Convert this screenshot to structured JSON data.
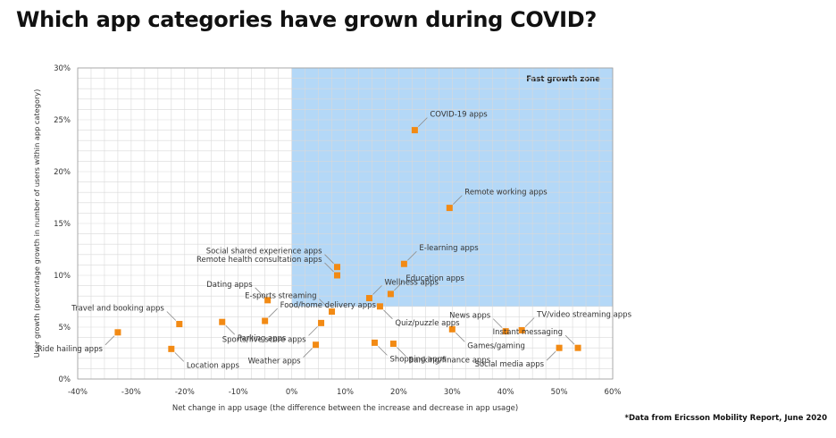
{
  "title": "Which app categories have grown during COVID?",
  "source_note": "*Data from Ericsson Mobility Report, June 2020",
  "colors": {
    "zone": "#b4d8f7",
    "marker": "#f28a14",
    "grid": "#d9d9d9",
    "text": "#333333"
  },
  "chart_data": {
    "type": "scatter",
    "xlabel": "Net change in app usage (the difference between the increase and decrease in app usage)",
    "ylabel": "User growth (percentage growth in number of users within app category)",
    "xlim": [
      -40,
      60
    ],
    "ylim": [
      0,
      30
    ],
    "x_ticks": [
      "-40%",
      "-30%",
      "-20%",
      "-10%",
      "0%",
      "10%",
      "20%",
      "30%",
      "40%",
      "50%",
      "60%"
    ],
    "y_ticks": [
      "0%",
      "5%",
      "10%",
      "15%",
      "20%",
      "25%",
      "30%"
    ],
    "grid": true,
    "zone": {
      "label": "Fast growth zone",
      "x_from": 0,
      "x_to": 60,
      "y_from": 7,
      "y_to": 30
    },
    "points": [
      {
        "label": "COVID-19 apps",
        "x": 23,
        "y": 24,
        "pos": "ne"
      },
      {
        "label": "Remote working apps",
        "x": 29.5,
        "y": 16.5,
        "pos": "ne"
      },
      {
        "label": "E-learning apps",
        "x": 21,
        "y": 11.1,
        "pos": "ne"
      },
      {
        "label": "Social shared experience apps",
        "x": 8.5,
        "y": 10.8,
        "pos": "nw"
      },
      {
        "label": "Remote health consultation apps",
        "x": 8.5,
        "y": 10,
        "pos": "nw"
      },
      {
        "label": "Wellness apps",
        "x": 14.5,
        "y": 7.8,
        "pos": "ne"
      },
      {
        "label": "Education apps",
        "x": 18.5,
        "y": 8.2,
        "pos": "ne"
      },
      {
        "label": "Dating apps",
        "x": -4.5,
        "y": 7.6,
        "pos": "nw"
      },
      {
        "label": "E-sports streaming",
        "x": 7.5,
        "y": 6.5,
        "pos": "nw"
      },
      {
        "label": "Quiz/puzzle apps",
        "x": 16.5,
        "y": 7,
        "pos": "se"
      },
      {
        "label": "Food/home delivery apps",
        "x": -5,
        "y": 5.6,
        "pos": "ne"
      },
      {
        "label": "Sports/live score apps",
        "x": 5.5,
        "y": 5.4,
        "pos": "sw"
      },
      {
        "label": "Travel and booking apps",
        "x": -21,
        "y": 5.3,
        "pos": "nw"
      },
      {
        "label": "Ride hailing apps",
        "x": -32.5,
        "y": 4.5,
        "pos": "sw"
      },
      {
        "label": "Parking apps",
        "x": -13,
        "y": 5.5,
        "pos": "se"
      },
      {
        "label": "Location apps",
        "x": -22.5,
        "y": 2.9,
        "pos": "se"
      },
      {
        "label": "Weather apps",
        "x": 4.5,
        "y": 3.3,
        "pos": "sw"
      },
      {
        "label": "Shopping apps",
        "x": 15.5,
        "y": 3.5,
        "pos": "se"
      },
      {
        "label": "Banking/finance apps",
        "x": 19,
        "y": 3.4,
        "pos": "se"
      },
      {
        "label": "News apps",
        "x": 40,
        "y": 4.6,
        "pos": "nw"
      },
      {
        "label": "Games/gaming",
        "x": 30,
        "y": 4.8,
        "pos": "se"
      },
      {
        "label": "TV/video streaming apps",
        "x": 43,
        "y": 4.7,
        "pos": "ne"
      },
      {
        "label": "Instant messaging",
        "x": 53.5,
        "y": 3,
        "pos": "nw"
      },
      {
        "label": "Social media apps",
        "x": 50,
        "y": 3,
        "pos": "sw"
      }
    ]
  }
}
